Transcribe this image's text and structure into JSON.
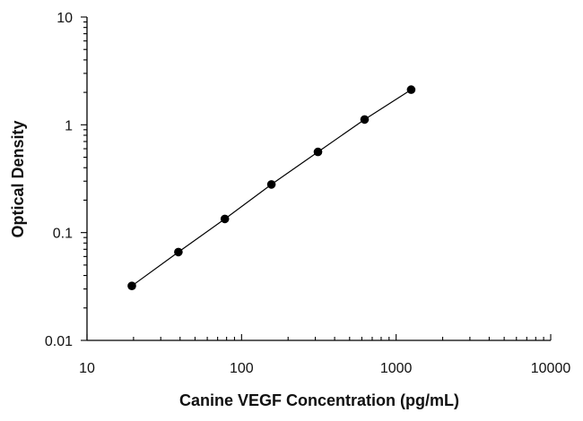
{
  "chart_data": {
    "type": "scatter",
    "title": "",
    "xlabel": "Canine VEGF Concentration (pg/mL)",
    "ylabel": "Optical Density",
    "x_scale": "log",
    "y_scale": "log",
    "xlim": [
      10,
      10000
    ],
    "ylim": [
      0.01,
      10
    ],
    "x_ticks": [
      "10",
      "100",
      "1000",
      "10000"
    ],
    "y_ticks": [
      "0.01",
      "0.1",
      "1",
      "10"
    ],
    "grid": false,
    "legend": "none",
    "series": [
      {
        "x": [
          19.5,
          39,
          78,
          156,
          312,
          625,
          1250
        ],
        "y": [
          0.032,
          0.066,
          0.134,
          0.28,
          0.56,
          1.12,
          2.12
        ],
        "line": true,
        "marker": "circle",
        "color": "#000000"
      }
    ]
  }
}
